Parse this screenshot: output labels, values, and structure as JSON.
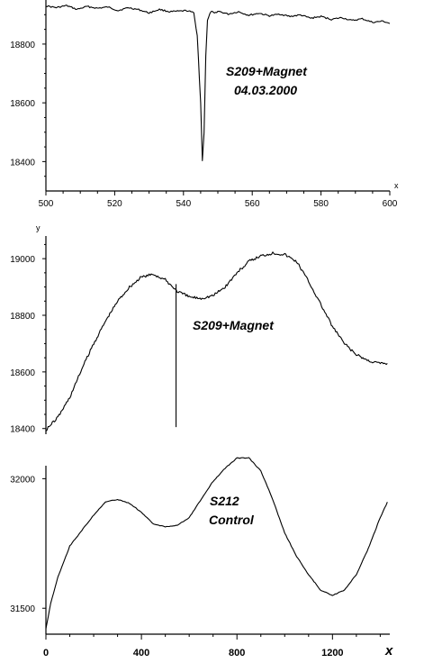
{
  "chart_data": [
    {
      "type": "line",
      "xlim": [
        500,
        600
      ],
      "ylim": [
        18300,
        18950
      ],
      "xticks": [
        500,
        520,
        540,
        560,
        580,
        600
      ],
      "yticks": [
        18400,
        18600,
        18800
      ],
      "xlabel": "x",
      "annotation": [
        "S209+Magnet",
        "04.03.2000"
      ],
      "x": [
        500,
        503,
        506,
        509,
        512,
        515,
        518,
        521,
        524,
        527,
        530,
        533,
        536,
        539,
        541,
        543,
        544,
        545,
        545.5,
        546,
        546.5,
        547,
        548,
        549,
        550,
        553,
        556,
        559,
        562,
        565,
        568,
        571,
        574,
        577,
        580,
        583,
        586,
        589,
        592,
        595,
        598,
        600
      ],
      "y": [
        18930,
        18924,
        18931,
        18918,
        18928,
        18922,
        18926,
        18914,
        18924,
        18917,
        18906,
        18918,
        18910,
        18912,
        18914,
        18906,
        18830,
        18600,
        18405,
        18500,
        18760,
        18880,
        18912,
        18904,
        18912,
        18902,
        18910,
        18898,
        18905,
        18896,
        18902,
        18894,
        18899,
        18888,
        18894,
        18884,
        18890,
        18880,
        18886,
        18874,
        18878,
        18870
      ]
    },
    {
      "type": "line",
      "xlim": [
        0,
        1440
      ],
      "ylim": [
        18380,
        19080
      ],
      "yticks": [
        18400,
        18600,
        18800,
        19000
      ],
      "ylabel": "y",
      "annotation": "S209+Magnet",
      "spike": {
        "x": 545,
        "y": 18405
      },
      "x": [
        0,
        50,
        100,
        150,
        200,
        250,
        300,
        350,
        400,
        450,
        500,
        550,
        600,
        650,
        700,
        750,
        800,
        850,
        900,
        950,
        1000,
        1050,
        1100,
        1150,
        1200,
        1250,
        1300,
        1350,
        1400,
        1430
      ],
      "y": [
        18395,
        18440,
        18510,
        18610,
        18700,
        18780,
        18850,
        18900,
        18935,
        18945,
        18925,
        18885,
        18865,
        18860,
        18870,
        18900,
        18950,
        18990,
        19010,
        19020,
        19015,
        18990,
        18920,
        18840,
        18760,
        18700,
        18660,
        18640,
        18630,
        18630
      ]
    },
    {
      "type": "line",
      "xlim": [
        0,
        1440
      ],
      "ylim": [
        31400,
        32050
      ],
      "xticks": [
        0,
        400,
        800,
        1200
      ],
      "yticks": [
        31500,
        32000
      ],
      "xlabel": "x",
      "annotation": [
        "S212",
        "Control"
      ],
      "x": [
        0,
        20,
        50,
        100,
        150,
        200,
        250,
        300,
        350,
        400,
        450,
        500,
        550,
        600,
        650,
        700,
        750,
        800,
        850,
        900,
        950,
        1000,
        1050,
        1100,
        1150,
        1200,
        1250,
        1300,
        1350,
        1400,
        1430
      ],
      "y": [
        31420,
        31520,
        31620,
        31740,
        31800,
        31860,
        31910,
        31920,
        31905,
        31870,
        31825,
        31815,
        31820,
        31850,
        31920,
        31990,
        32040,
        32080,
        32080,
        32030,
        31920,
        31790,
        31700,
        31630,
        31570,
        31550,
        31570,
        31630,
        31730,
        31850,
        31910
      ]
    }
  ]
}
